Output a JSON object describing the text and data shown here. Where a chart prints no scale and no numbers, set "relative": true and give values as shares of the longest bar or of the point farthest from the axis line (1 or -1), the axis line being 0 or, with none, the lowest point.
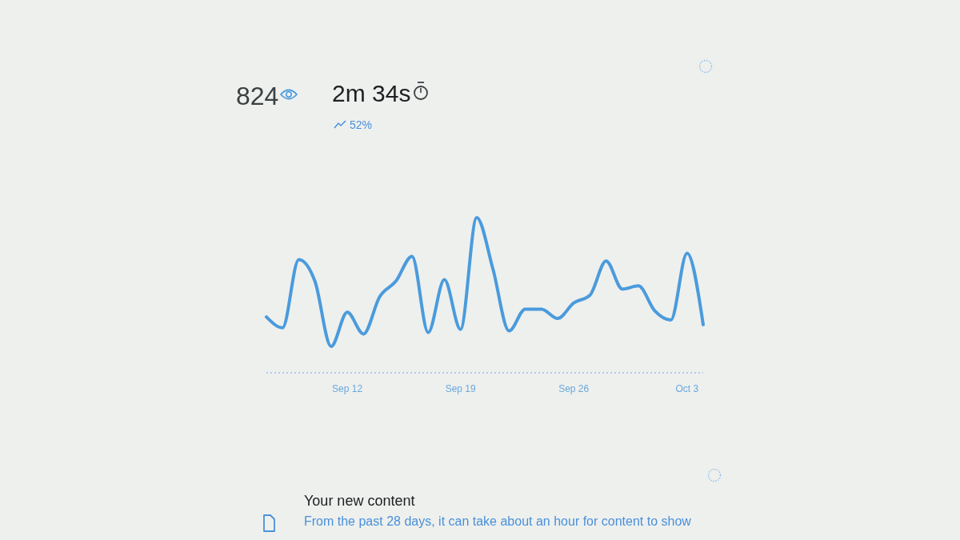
{
  "chart_data": {
    "type": "line",
    "relative": true,
    "color": "#4a9bdc",
    "categories": [
      null,
      null,
      null,
      null,
      null,
      "Sep 12",
      null,
      null,
      null,
      null,
      null,
      null,
      "Sep 19",
      null,
      null,
      null,
      null,
      null,
      null,
      "Sep 26",
      null,
      null,
      null,
      null,
      null,
      null,
      "Oct 3",
      null
    ],
    "values": [
      0.36,
      0.29,
      0.73,
      0.59,
      0.17,
      0.39,
      0.25,
      0.49,
      0.59,
      0.75,
      0.26,
      0.6,
      0.28,
      1,
      0.67,
      0.27,
      0.41,
      0.41,
      0.35,
      0.45,
      0.5,
      0.72,
      0.54,
      0.56,
      0.4,
      0.34,
      0.77,
      0.31
    ],
    "annotations": [
      "824",
      "2m 34s",
      "52%",
      "Your new content",
      "From the past 28 days, it can take about an hour for content to show"
    ]
  }
}
